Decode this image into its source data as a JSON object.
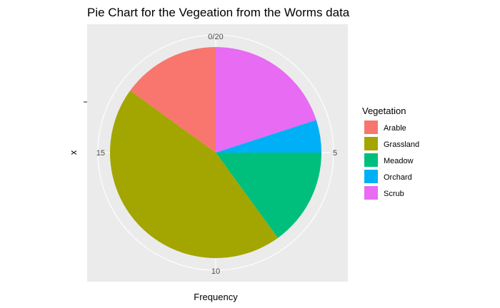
{
  "chart_data": {
    "type": "pie",
    "title": "Pie Chart for the Vegeation from the Worms data",
    "xlabel": "Frequency",
    "ylabel": "x",
    "total": 20,
    "radial_ticks": [
      "0/20",
      "5",
      "10",
      "15"
    ],
    "tick_values": [
      0,
      5,
      10,
      15
    ],
    "legend": {
      "title": "Vegetation",
      "position": "right"
    },
    "slices": [
      {
        "label": "Arable",
        "value": 3,
        "color": "#F8766D"
      },
      {
        "label": "Grassland",
        "value": 9,
        "color": "#A3A500"
      },
      {
        "label": "Meadow",
        "value": 3,
        "color": "#00BF7D"
      },
      {
        "label": "Orchard",
        "value": 1,
        "color": "#00B0F6"
      },
      {
        "label": "Scrub",
        "value": 4,
        "color": "#E76BF3"
      }
    ],
    "panel_background": "#EBEBEB",
    "grid_color": "#FFFFFF"
  }
}
